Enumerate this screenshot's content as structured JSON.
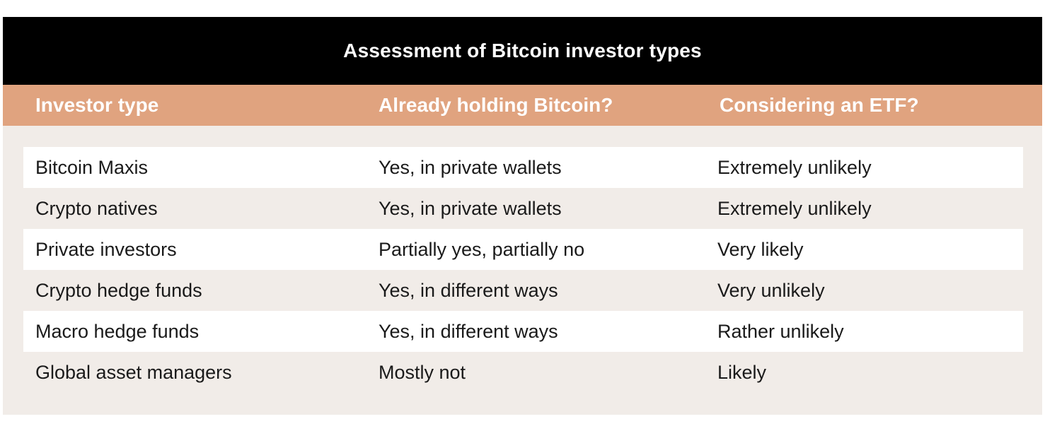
{
  "title": "Assessment of Bitcoin investor types",
  "columns": [
    "Investor type",
    "Already holding Bitcoin?",
    "Considering an ETF?"
  ],
  "rows": [
    [
      "Bitcoin Maxis",
      "Yes, in private wallets",
      "Extremely unlikely"
    ],
    [
      "Crypto natives",
      "Yes, in private wallets",
      "Extremely unlikely"
    ],
    [
      "Private investors",
      "Partially yes, partially no",
      "Very likely"
    ],
    [
      "Crypto hedge funds",
      "Yes, in different ways",
      "Very unlikely"
    ],
    [
      "Macro hedge funds",
      "Yes, in different ways",
      "Rather unlikely"
    ],
    [
      "Global asset managers",
      "Mostly not",
      "Likely"
    ]
  ],
  "colors": {
    "title_bg": "#000000",
    "header_bg": "#e0a37f",
    "card_bg": "#f1ece8",
    "stripe_bg": "#ffffff"
  }
}
